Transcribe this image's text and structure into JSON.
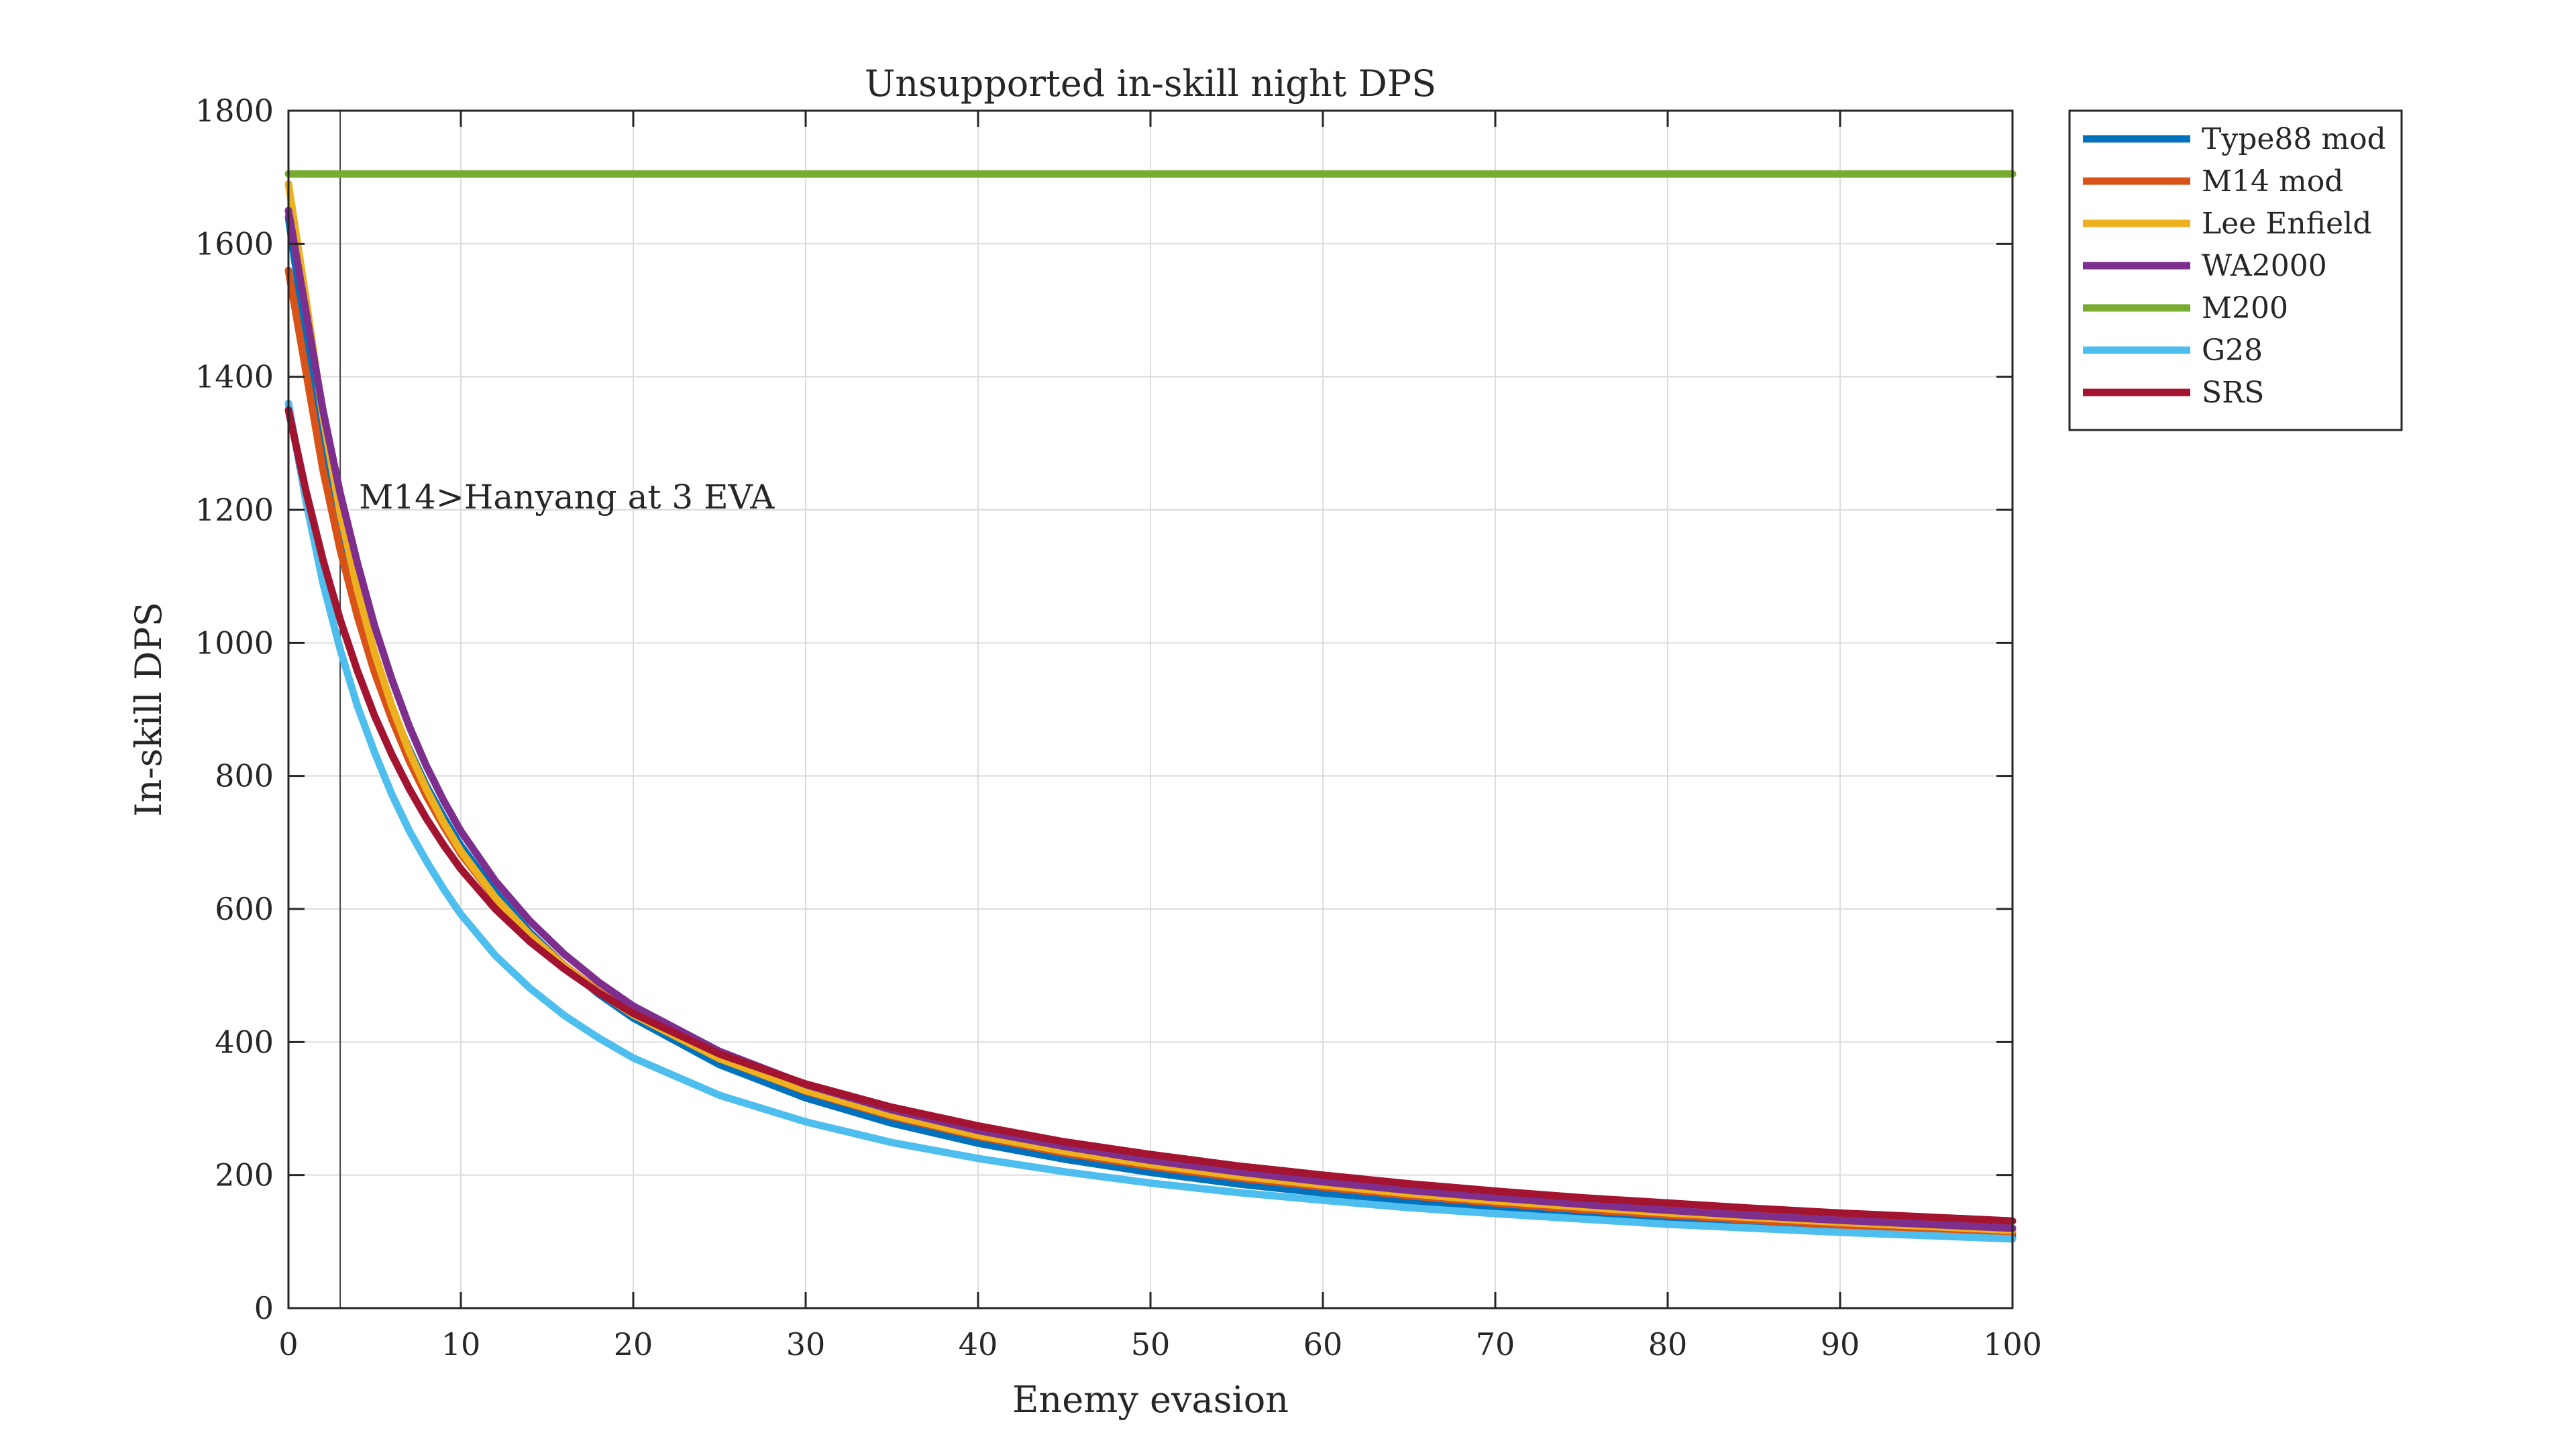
{
  "chart_data": {
    "type": "line",
    "title": "Unsupported in-skill night DPS",
    "xlabel": "Enemy evasion",
    "ylabel": "In-skill DPS",
    "xlim": [
      0,
      100
    ],
    "ylim": [
      0,
      1800
    ],
    "xticks": [
      0,
      10,
      20,
      30,
      40,
      50,
      60,
      70,
      80,
      90,
      100
    ],
    "yticks": [
      0,
      200,
      400,
      600,
      800,
      1000,
      1200,
      1400,
      1600,
      1800
    ],
    "grid": true,
    "legend_position": "outside-top-right",
    "x": [
      0,
      1,
      2,
      3,
      4,
      5,
      6,
      7,
      8,
      9,
      10,
      12,
      14,
      16,
      18,
      20,
      25,
      30,
      35,
      40,
      45,
      50,
      55,
      60,
      65,
      70,
      75,
      80,
      85,
      90,
      95,
      100
    ],
    "series": [
      {
        "name": "Type88 mod",
        "color": "#0072BD",
        "values": [
          1640,
          1460,
          1290,
          1160,
          1060,
          970,
          900,
          840,
          785,
          738,
          695,
          625,
          565,
          515,
          472,
          436,
          366,
          316,
          278,
          248,
          224,
          204,
          187,
          173,
          161,
          150,
          141,
          133,
          125,
          119,
          113,
          108
        ]
      },
      {
        "name": "M14 mod",
        "color": "#D95319",
        "values": [
          1560,
          1410,
          1260,
          1140,
          1040,
          955,
          885,
          823,
          770,
          724,
          683,
          616,
          561,
          515,
          476,
          442,
          375,
          326,
          288,
          258,
          233,
          213,
          196,
          182,
          169,
          158,
          148,
          140,
          132,
          125,
          119,
          113
        ]
      },
      {
        "name": "Lee Enfield",
        "color": "#EDB120",
        "values": [
          1690,
          1520,
          1340,
          1195,
          1080,
          985,
          905,
          837,
          780,
          730,
          687,
          617,
          561,
          514,
          475,
          441,
          375,
          327,
          290,
          260,
          236,
          216,
          199,
          185,
          172,
          161,
          152,
          143,
          136,
          129,
          123,
          117
        ]
      },
      {
        "name": "WA2000",
        "color": "#7E2F8E",
        "values": [
          1650,
          1500,
          1350,
          1225,
          1120,
          1025,
          945,
          875,
          815,
          763,
          717,
          642,
          582,
          532,
          490,
          454,
          386,
          336,
          298,
          267,
          243,
          222,
          205,
          190,
          177,
          166,
          156,
          147,
          139,
          132,
          126,
          120
        ]
      },
      {
        "name": "M200",
        "color": "#77AC30",
        "values": [
          1705,
          1705,
          1705,
          1705,
          1705,
          1705,
          1705,
          1705,
          1705,
          1705,
          1705,
          1705,
          1705,
          1705,
          1705,
          1705,
          1705,
          1705,
          1705,
          1705,
          1705,
          1705,
          1705,
          1705,
          1705,
          1705,
          1705,
          1705,
          1705,
          1705,
          1705,
          1705
        ]
      },
      {
        "name": "G28",
        "color": "#4DBEEE",
        "values": [
          1360,
          1215,
          1090,
          990,
          905,
          835,
          772,
          718,
          672,
          630,
          592,
          530,
          481,
          440,
          406,
          376,
          320,
          280,
          249,
          225,
          205,
          188,
          174,
          162,
          151,
          142,
          134,
          126,
          120,
          114,
          109,
          104
        ]
      },
      {
        "name": "SRS",
        "color": "#A2142F",
        "values": [
          1350,
          1230,
          1125,
          1035,
          958,
          890,
          832,
          781,
          736,
          696,
          660,
          600,
          551,
          510,
          474,
          443,
          382,
          337,
          302,
          274,
          250,
          231,
          214,
          200,
          187,
          176,
          166,
          158,
          150,
          143,
          137,
          131
        ]
      }
    ],
    "reference_line": {
      "x": 3,
      "label": "M14>Hanyang at 3 EVA"
    }
  }
}
